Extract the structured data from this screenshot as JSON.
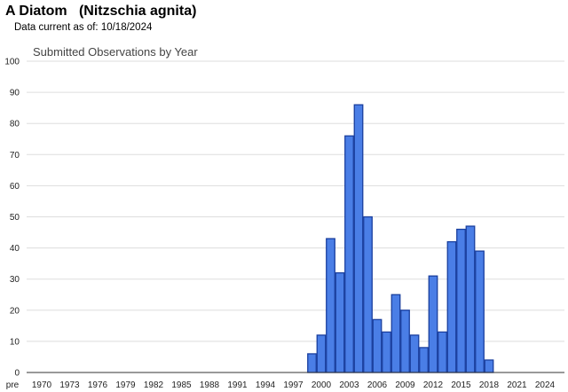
{
  "header": {
    "species_title": "A Diatom   (Nitzschia agnita)",
    "date_prefix": "Data current as of:",
    "date_value": "10/18/2024"
  },
  "colors": {
    "bar_fill": "#4a7ee6",
    "bar_stroke": "#1a3f9e",
    "grid": "#dddddd",
    "axis": "#333333"
  },
  "chart_data": {
    "type": "bar",
    "title": "Submitted Observations by Year",
    "xlabel": "",
    "ylabel": "",
    "ylim": [
      0,
      100
    ],
    "yticks": [
      0,
      10,
      20,
      30,
      40,
      50,
      60,
      70,
      80,
      90,
      100
    ],
    "grid": true,
    "x_tick_labels": [
      "pre",
      "1970",
      "1973",
      "1976",
      "1979",
      "1982",
      "1985",
      "1988",
      "1991",
      "1994",
      "1997",
      "2000",
      "2003",
      "2006",
      "2009",
      "2012",
      "2015",
      "2018",
      "2021",
      "2024"
    ],
    "categories": [
      "1999",
      "2000",
      "2001",
      "2002",
      "2003",
      "2004",
      "2005",
      "2006",
      "2007",
      "2008",
      "2009",
      "2010",
      "2011",
      "2012",
      "2013",
      "2014",
      "2015",
      "2016",
      "2017",
      "2018"
    ],
    "values": [
      6,
      12,
      43,
      32,
      76,
      86,
      50,
      17,
      13,
      25,
      20,
      12,
      8,
      31,
      13,
      42,
      46,
      47,
      39,
      4
    ]
  }
}
